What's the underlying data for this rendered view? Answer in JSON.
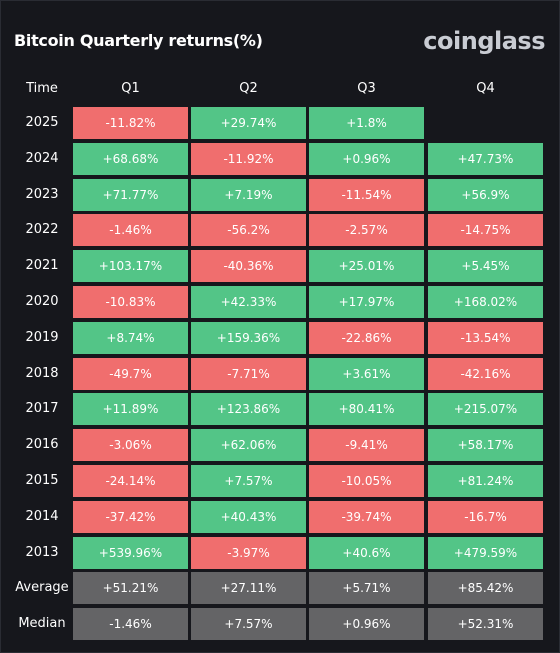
{
  "header": {
    "title": "Bitcoin Quarterly returns(%)",
    "brand": "coinglass"
  },
  "colors": {
    "positive": "#53c587",
    "negative": "#f06e6e",
    "summary": "#646466",
    "background": "#16171c"
  },
  "chart_data": {
    "type": "table",
    "title": "Bitcoin Quarterly returns(%)",
    "columns": [
      "Time",
      "Q1",
      "Q2",
      "Q3",
      "Q4"
    ],
    "rows": [
      {
        "label": "2025",
        "values": [
          "-11.82%",
          "+29.74%",
          "+1.8%",
          ""
        ]
      },
      {
        "label": "2024",
        "values": [
          "+68.68%",
          "-11.92%",
          "+0.96%",
          "+47.73%"
        ]
      },
      {
        "label": "2023",
        "values": [
          "+71.77%",
          "+7.19%",
          "-11.54%",
          "+56.9%"
        ]
      },
      {
        "label": "2022",
        "values": [
          "-1.46%",
          "-56.2%",
          "-2.57%",
          "-14.75%"
        ]
      },
      {
        "label": "2021",
        "values": [
          "+103.17%",
          "-40.36%",
          "+25.01%",
          "+5.45%"
        ]
      },
      {
        "label": "2020",
        "values": [
          "-10.83%",
          "+42.33%",
          "+17.97%",
          "+168.02%"
        ]
      },
      {
        "label": "2019",
        "values": [
          "+8.74%",
          "+159.36%",
          "-22.86%",
          "-13.54%"
        ]
      },
      {
        "label": "2018",
        "values": [
          "-49.7%",
          "-7.71%",
          "+3.61%",
          "-42.16%"
        ]
      },
      {
        "label": "2017",
        "values": [
          "+11.89%",
          "+123.86%",
          "+80.41%",
          "+215.07%"
        ]
      },
      {
        "label": "2016",
        "values": [
          "-3.06%",
          "+62.06%",
          "-9.41%",
          "+58.17%"
        ]
      },
      {
        "label": "2015",
        "values": [
          "-24.14%",
          "+7.57%",
          "-10.05%",
          "+81.24%"
        ]
      },
      {
        "label": "2014",
        "values": [
          "-37.42%",
          "+40.43%",
          "-39.74%",
          "-16.7%"
        ]
      },
      {
        "label": "2013",
        "values": [
          "+539.96%",
          "-3.97%",
          "+40.6%",
          "+479.59%"
        ]
      }
    ],
    "summary": [
      {
        "label": "Average",
        "values": [
          "+51.21%",
          "+27.11%",
          "+5.71%",
          "+85.42%"
        ]
      },
      {
        "label": "Median",
        "values": [
          "-1.46%",
          "+7.57%",
          "+0.96%",
          "+52.31%"
        ]
      }
    ]
  }
}
